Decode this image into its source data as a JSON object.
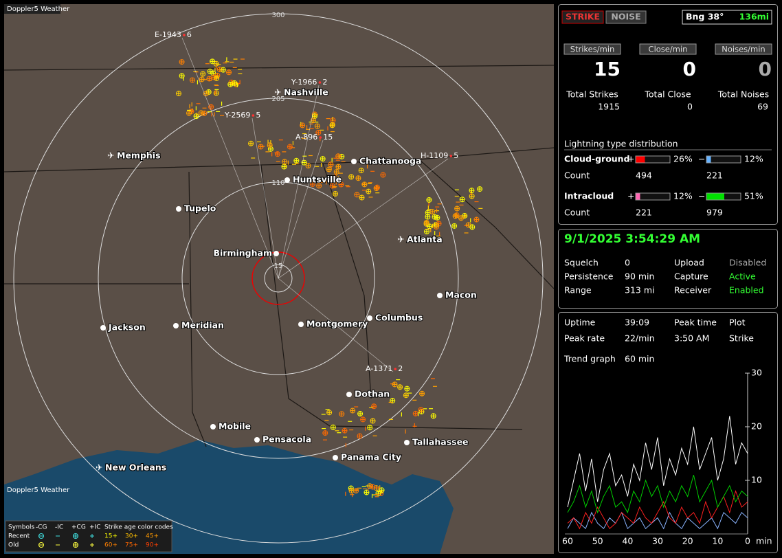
{
  "map": {
    "title": "Doppler5 Weather",
    "ranges": [
      "300",
      "205",
      "110",
      "15"
    ],
    "cities": [
      "Nashville",
      "Memphis",
      "Chattanooga",
      "Huntsville",
      "Tupelo",
      "Atlanta",
      "Birmingham",
      "Macon",
      "Jackson",
      "Meridian",
      "Montgomery",
      "Columbus",
      "Dothan",
      "Mobile",
      "Pensacola",
      "Tallahassee",
      "Panama City",
      "New Orleans"
    ],
    "storms": [
      {
        "id": "E-1943",
        "count": "6"
      },
      {
        "id": "Y-1966",
        "count": "2"
      },
      {
        "id": "Y-2569",
        "count": "5"
      },
      {
        "id": "A-896",
        "count": "15"
      },
      {
        "id": "H-1109",
        "count": "5"
      },
      {
        "id": "A-1371",
        "count": "2"
      }
    ],
    "legend": {
      "headers": [
        "Symbols",
        "-CG",
        "-IC",
        "+CG",
        "+IC",
        "Strike age color codes"
      ],
      "rows": [
        {
          "label": "Recent",
          "ages": [
            "15+",
            "30+",
            "45+"
          ]
        },
        {
          "label": "Old",
          "ages": [
            "60+",
            "75+",
            "90+"
          ]
        }
      ]
    }
  },
  "controls": {
    "strike": "STRIKE",
    "noise": "NOISE",
    "bearing": "Bng 38°",
    "distance": "136mi"
  },
  "rates": {
    "labels": [
      "Strikes/min",
      "Close/min",
      "Noises/min"
    ],
    "values": [
      "15",
      "0",
      "0"
    ]
  },
  "totals": {
    "labels": [
      "Total Strikes",
      "Total Close",
      "Total Noises"
    ],
    "values": [
      "1915",
      "0",
      "69"
    ]
  },
  "distribution": {
    "title": "Lightning type distribution",
    "count_label": "Count",
    "rows": [
      {
        "name": "Cloud-ground",
        "pos": {
          "sign": "+",
          "pct": {
            "value": 26,
            "label": "26%"
          },
          "count": "494",
          "color": "#ff0000"
        },
        "neg": {
          "sign": "−",
          "pct": {
            "value": 12,
            "label": "12%"
          },
          "count": "221",
          "color": "#66b3ff"
        }
      },
      {
        "name": "Intracloud",
        "pos": {
          "sign": "+",
          "pct": {
            "value": 12,
            "label": "12%"
          },
          "count": "221",
          "color": "#ff66b3"
        },
        "neg": {
          "sign": "−",
          "pct": {
            "value": 51,
            "label": "51%"
          },
          "count": "979",
          "color": "#00e000"
        }
      }
    ]
  },
  "status": {
    "datetime": "9/1/2025 3:54:29 AM",
    "rows": [
      [
        "Squelch",
        "0",
        "Upload",
        "Disabled"
      ],
      [
        "Persistence",
        "90 min",
        "Capture",
        "Active"
      ],
      [
        "Range",
        "313 mi",
        "Receiver",
        "Enabled"
      ]
    ]
  },
  "trend": {
    "rows": [
      [
        "Uptime",
        "39:09",
        "Peak time",
        "Plot"
      ],
      [
        "Peak rate",
        "22/min",
        "3:50 AM",
        "Strike"
      ],
      [
        "Trend graph",
        "60 min"
      ]
    ],
    "xlim": [
      60,
      0
    ],
    "ylim": [
      0,
      30
    ],
    "xticks": [
      60,
      50,
      40,
      30,
      20,
      10,
      0
    ],
    "yticks": [
      10,
      20,
      30
    ],
    "x_label": "min",
    "minutes": [
      60,
      58,
      56,
      54,
      52,
      50,
      48,
      46,
      44,
      42,
      40,
      38,
      36,
      34,
      32,
      30,
      28,
      26,
      24,
      22,
      20,
      18,
      16,
      14,
      12,
      10,
      8,
      6,
      4,
      2,
      0
    ],
    "series": [
      {
        "color": "#ffffff",
        "values": [
          5,
          10,
          15,
          8,
          14,
          6,
          12,
          15,
          9,
          11,
          7,
          13,
          10,
          17,
          12,
          18,
          9,
          14,
          11,
          16,
          13,
          20,
          12,
          15,
          18,
          10,
          14,
          22,
          13,
          17,
          15
        ]
      },
      {
        "color": "#00d000",
        "values": [
          4,
          6,
          9,
          5,
          8,
          4,
          7,
          9,
          5,
          6,
          4,
          8,
          6,
          10,
          7,
          9,
          5,
          8,
          6,
          9,
          7,
          11,
          6,
          8,
          10,
          5,
          7,
          9,
          6,
          8,
          7
        ]
      },
      {
        "color": "#ff2020",
        "values": [
          2,
          3,
          1,
          4,
          2,
          5,
          3,
          1,
          2,
          4,
          3,
          2,
          5,
          3,
          2,
          4,
          6,
          3,
          2,
          5,
          3,
          4,
          2,
          6,
          3,
          5,
          7,
          4,
          8,
          5,
          6
        ]
      },
      {
        "color": "#8ab4ff",
        "values": [
          1,
          3,
          2,
          1,
          4,
          2,
          1,
          3,
          2,
          4,
          1,
          2,
          3,
          1,
          2,
          3,
          1,
          4,
          2,
          1,
          3,
          2,
          1,
          2,
          3,
          1,
          4,
          3,
          2,
          4,
          3
        ]
      }
    ]
  }
}
